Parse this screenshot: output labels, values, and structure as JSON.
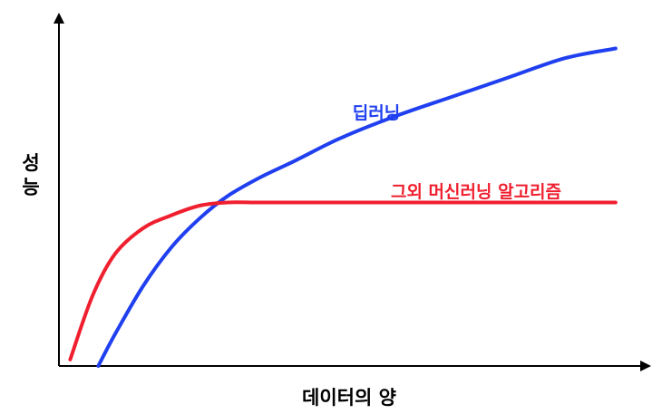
{
  "chart_data": {
    "type": "line",
    "title": "",
    "xlabel": "데이터의 양",
    "ylabel": "성능",
    "xlim": [
      0,
      100
    ],
    "ylim": [
      0,
      100
    ],
    "grid": false,
    "legend": "inline labels",
    "series": [
      {
        "name": "딥러닝",
        "color": "#1f3ff0",
        "x": [
          7,
          10,
          15,
          20,
          25,
          30,
          36,
          42,
          50,
          60,
          70,
          80,
          90,
          99
        ],
        "y": [
          0,
          10,
          25,
          37,
          46,
          53,
          59,
          64,
          71,
          78,
          84,
          90,
          96,
          99
        ]
      },
      {
        "name": "그외 머신러닝 알고리즘",
        "color": "#f01f2f",
        "x": [
          2,
          6,
          10,
          15,
          20,
          25,
          30,
          35,
          40,
          45,
          50,
          60,
          70,
          80,
          90,
          99
        ],
        "y": [
          2,
          22,
          35,
          43,
          47,
          50,
          51,
          51,
          51,
          51,
          51,
          51,
          51,
          51,
          51,
          51
        ]
      }
    ]
  }
}
